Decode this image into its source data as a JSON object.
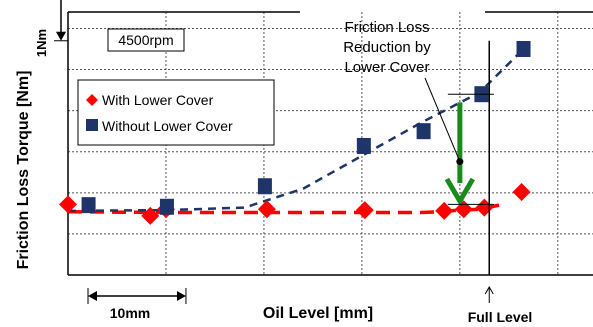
{
  "chart_data": {
    "type": "scatter",
    "title": "",
    "xlabel": "Oil Level  [mm]",
    "ylabel": "Friction Loss  Torque  [Nm]",
    "xlim": [
      0,
      54
    ],
    "ylim": [
      0,
      3.2
    ],
    "grid": true,
    "legend_placement": "top-left",
    "series": [
      {
        "name": "With Lower Cover",
        "marker": "diamond",
        "color": "#ff0000",
        "x": [
          0,
          8.4,
          10,
          20.3,
          30.3,
          38.4,
          40.4,
          42.5,
          46.3
        ],
        "y": [
          0.86,
          0.72,
          0.8,
          0.8,
          0.79,
          0.78,
          0.8,
          0.82,
          1.01
        ]
      },
      {
        "name": "Without Lower Cover",
        "marker": "square",
        "color": "#1f3469",
        "x": [
          2.1,
          10.1,
          20.1,
          30.2,
          36.3,
          42.2,
          46.5
        ],
        "y": [
          0.85,
          0.83,
          1.08,
          1.57,
          1.75,
          2.2,
          2.75
        ]
      }
    ],
    "trend_lines": [
      {
        "series": "With Lower Cover",
        "color": "#ff0000",
        "style": "dashed",
        "x": [
          0,
          10,
          20,
          30,
          36,
          38,
          40,
          42,
          44
        ],
        "y": [
          0.77,
          0.76,
          0.76,
          0.76,
          0.76,
          0.77,
          0.79,
          0.8,
          0.85
        ]
      },
      {
        "series": "Without Lower Cover",
        "color": "#1f3469",
        "style": "dashed",
        "x": [
          0,
          10,
          18,
          24,
          30,
          36,
          42,
          46.5
        ],
        "y": [
          0.78,
          0.79,
          0.82,
          1.05,
          1.45,
          1.85,
          2.22,
          2.75
        ]
      }
    ],
    "annotations": {
      "rpm_box": "4500rpm",
      "scale_y": "1Nm",
      "scale_y_value": 0.7,
      "scale_x": "10mm",
      "scale_x_value": 10,
      "reduction_label": [
        "Friction Loss",
        "Reduction by",
        "Lower Cover"
      ],
      "reduction_arrow": {
        "x": 40,
        "y_from": 2.1,
        "y_to": 0.9,
        "color": "#1a8a1a"
      },
      "full_level_label": "Full Level",
      "full_level_x": 43
    }
  }
}
